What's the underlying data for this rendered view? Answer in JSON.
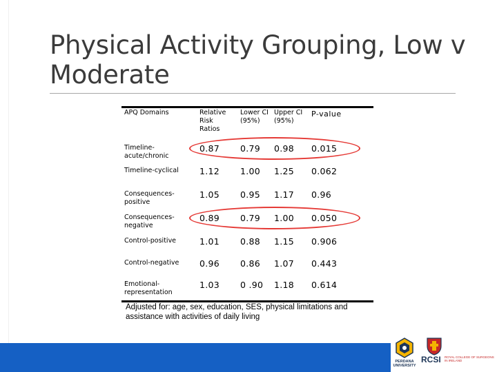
{
  "slide": {
    "title": "Physical Activity Grouping, Low v Moderate"
  },
  "table": {
    "headers": {
      "domain": "APQ Domains",
      "rr": "Relative Risk Ratios",
      "lower": "Lower CI (95%)",
      "upper": "Upper CI (95%)",
      "p": "P-value"
    },
    "rows": [
      {
        "domain": "Timeline-acute/chronic",
        "rr": "0.87",
        "lower": "0.79",
        "upper": "0.98",
        "p": "0.015",
        "highlighted": true
      },
      {
        "domain": "Timeline-cyclical",
        "rr": "1.12",
        "lower": "1.00",
        "upper": "1.25",
        "p": "0.062",
        "highlighted": false
      },
      {
        "domain": "Consequences-positive",
        "rr": "1.05",
        "lower": "0.95",
        "upper": "1.17",
        "p": "0.96",
        "highlighted": false
      },
      {
        "domain": "Consequences-negative",
        "rr": "0.89",
        "lower": "0.79",
        "upper": "1.00",
        "p": "0.050",
        "highlighted": true
      },
      {
        "domain": "Control-positive",
        "rr": "1.01",
        "lower": "0.88",
        "upper": "1.15",
        "p": "0.906",
        "highlighted": false
      },
      {
        "domain": "Control-negative",
        "rr": "0.96",
        "lower": "0.86",
        "upper": "1.07",
        "p": "0.443",
        "highlighted": false
      },
      {
        "domain": "Emotional-representation",
        "rr": "1.03",
        "lower": "0 .90",
        "upper": "1.18",
        "p": "0.614",
        "highlighted": false
      }
    ],
    "footnote": "Adjusted for: age, sex, education, SES,  physical limitations  and\nassistance with activities of daily living"
  },
  "logos": {
    "left_name": "PERDANA UNIVERSITY",
    "right_name": "RCSI",
    "right_sub": "ROYAL COLLEGE OF SURGEONS IN IRELAND"
  },
  "colors": {
    "footer_band": "#1560c4",
    "highlight": "#e53935",
    "title": "#3b3b3b"
  }
}
